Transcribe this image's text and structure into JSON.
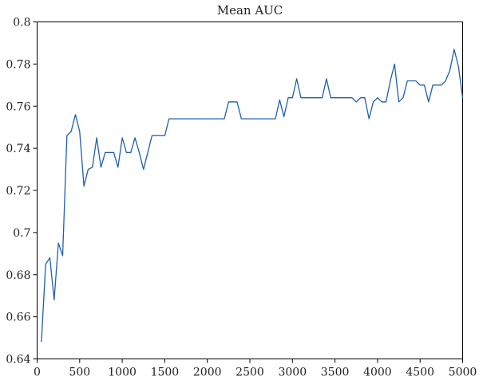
{
  "chart_data": {
    "type": "line",
    "title": "Mean AUC",
    "xlabel": "",
    "ylabel": "",
    "xlim": [
      0,
      5000
    ],
    "ylim": [
      0.64,
      0.8
    ],
    "xticks": [
      0,
      500,
      1000,
      1500,
      2000,
      2500,
      3000,
      3500,
      4000,
      4500,
      5000
    ],
    "xtick_labels": [
      "0",
      "500",
      "1000",
      "1500",
      "2000",
      "2500",
      "3000",
      "3500",
      "4000",
      "4500",
      "5000"
    ],
    "yticks": [
      0.64,
      0.66,
      0.68,
      0.7,
      0.72,
      0.74,
      0.76,
      0.78,
      0.8
    ],
    "ytick_labels": [
      "0.64",
      "0.66",
      "0.68",
      "0.7",
      "0.72",
      "0.74",
      "0.76",
      "0.78",
      "0.8"
    ],
    "grid": false,
    "line_color": "#1f5fae",
    "series": [
      {
        "x": [
          50,
          100,
          150,
          200,
          250,
          300,
          350,
          400,
          450,
          500,
          550,
          600,
          650,
          700,
          750,
          800,
          850,
          900,
          950,
          1000,
          1050,
          1100,
          1150,
          1200,
          1250,
          1300,
          1350,
          1400,
          1450,
          1500,
          1550,
          1600,
          1650,
          1700,
          1750,
          1800,
          1850,
          1900,
          1950,
          2000,
          2050,
          2100,
          2150,
          2200,
          2250,
          2300,
          2350,
          2400,
          2450,
          2500,
          2550,
          2600,
          2650,
          2700,
          2750,
          2800,
          2850,
          2900,
          2950,
          3000,
          3050,
          3100,
          3150,
          3200,
          3250,
          3300,
          3350,
          3400,
          3450,
          3500,
          3550,
          3600,
          3650,
          3700,
          3750,
          3800,
          3850,
          3900,
          3950,
          4000,
          4050,
          4100,
          4150,
          4200,
          4250,
          4300,
          4350,
          4400,
          4450,
          4500,
          4550,
          4600,
          4650,
          4700,
          4750,
          4800,
          4850,
          4900,
          4950,
          5000
        ],
        "y": [
          0.648,
          0.685,
          0.688,
          0.668,
          0.695,
          0.689,
          0.746,
          0.748,
          0.756,
          0.748,
          0.722,
          0.73,
          0.731,
          0.745,
          0.731,
          0.738,
          0.738,
          0.738,
          0.731,
          0.745,
          0.738,
          0.738,
          0.745,
          0.738,
          0.73,
          0.738,
          0.746,
          0.746,
          0.746,
          0.746,
          0.754,
          0.754,
          0.754,
          0.754,
          0.754,
          0.754,
          0.754,
          0.754,
          0.754,
          0.754,
          0.754,
          0.754,
          0.754,
          0.754,
          0.762,
          0.762,
          0.762,
          0.754,
          0.754,
          0.754,
          0.754,
          0.754,
          0.754,
          0.754,
          0.754,
          0.754,
          0.763,
          0.755,
          0.764,
          0.764,
          0.773,
          0.764,
          0.764,
          0.764,
          0.764,
          0.764,
          0.764,
          0.773,
          0.764,
          0.764,
          0.764,
          0.764,
          0.764,
          0.764,
          0.762,
          0.764,
          0.764,
          0.754,
          0.762,
          0.764,
          0.762,
          0.762,
          0.772,
          0.78,
          0.762,
          0.764,
          0.772,
          0.772,
          0.772,
          0.77,
          0.77,
          0.762,
          0.77,
          0.77,
          0.77,
          0.772,
          0.777,
          0.787,
          0.779,
          0.764
        ]
      }
    ]
  }
}
